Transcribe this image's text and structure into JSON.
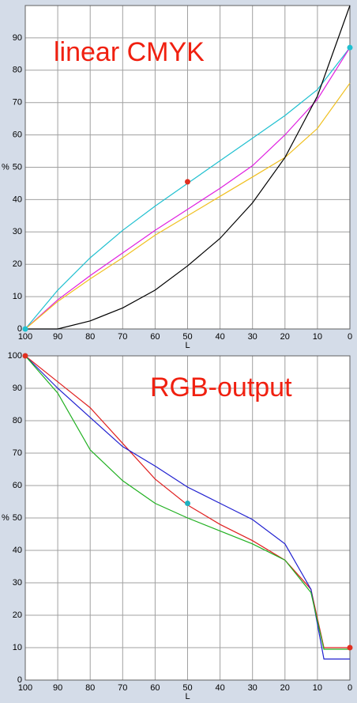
{
  "chart_data": [
    {
      "type": "line",
      "title": "linear CMYK",
      "xlabel": "L",
      "ylabel": "%",
      "x": [
        100,
        90,
        80,
        70,
        60,
        50,
        40,
        30,
        20,
        10,
        0
      ],
      "xlim": [
        100,
        0
      ],
      "xticks": [
        100,
        90,
        80,
        70,
        60,
        50,
        40,
        30,
        20,
        10,
        0
      ],
      "ylim": [
        0,
        100
      ],
      "yticks": [
        0,
        10,
        20,
        30,
        40,
        50,
        60,
        70,
        80,
        90
      ],
      "grid": true,
      "series": [
        {
          "color": "#20c0d0",
          "values": [
            0,
            12,
            22,
            30.5,
            38,
            45,
            52,
            59,
            66,
            74,
            87
          ]
        },
        {
          "color": "#e020e0",
          "values": [
            0,
            9,
            16.5,
            23.5,
            30.5,
            37,
            43.5,
            50.5,
            60,
            71,
            87
          ]
        },
        {
          "color": "#f0c020",
          "values": [
            0,
            8.5,
            15.5,
            22,
            29,
            35,
            41,
            47,
            53,
            62,
            76
          ]
        },
        {
          "color": "#000000",
          "values": [
            0,
            0,
            2.5,
            6.5,
            12,
            19.5,
            28,
            39,
            53,
            72,
            100
          ]
        }
      ],
      "markers": [
        {
          "x": 100,
          "y": 0,
          "color": "#20c0d0"
        },
        {
          "x": 50,
          "y": 45.5,
          "color": "#e03020"
        },
        {
          "x": 0,
          "y": 87,
          "color": "#20c0d0"
        }
      ]
    },
    {
      "type": "line",
      "title": "RGB-output",
      "xlabel": "L",
      "ylabel": "%",
      "x": [
        100,
        90,
        80,
        70,
        60,
        50,
        40,
        30,
        20,
        12,
        8,
        0
      ],
      "xlim": [
        100,
        0
      ],
      "xticks": [
        100,
        90,
        80,
        70,
        60,
        50,
        40,
        30,
        20,
        10,
        0
      ],
      "ylim": [
        0,
        100
      ],
      "yticks": [
        0,
        10,
        20,
        30,
        40,
        50,
        60,
        70,
        80,
        90,
        100
      ],
      "grid": true,
      "series": [
        {
          "color": "#e02020",
          "values": [
            100,
            92,
            84,
            73,
            62,
            54,
            48,
            43,
            37,
            28,
            10,
            10
          ]
        },
        {
          "color": "#2020d0",
          "values": [
            100,
            90,
            81,
            72,
            66,
            59.5,
            54.5,
            49.5,
            42,
            28,
            6.5,
            6.5
          ]
        },
        {
          "color": "#20b020",
          "values": [
            100,
            88.5,
            71,
            61.5,
            54.5,
            50,
            46,
            42,
            37,
            27,
            9.5,
            9.5
          ]
        }
      ],
      "markers": [
        {
          "x": 100,
          "y": 100,
          "color": "#e03020"
        },
        {
          "x": 50,
          "y": 54.5,
          "color": "#20b0c0"
        },
        {
          "x": 0,
          "y": 10,
          "color": "#e03020"
        }
      ]
    }
  ]
}
